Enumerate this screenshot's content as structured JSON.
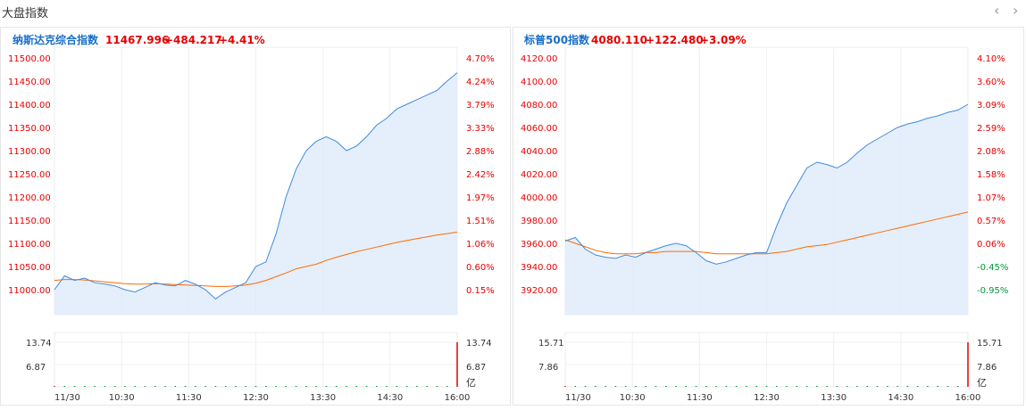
{
  "header": {
    "title": "大盘指数",
    "prev_icon": "chevron-left-icon",
    "next_icon": "chevron-right-icon"
  },
  "colors": {
    "up": "#e60000",
    "down": "#009933",
    "price_line": "#3d8be0",
    "avg_line": "#ff6a00",
    "area_fill": "#dce9fb",
    "name": "#1a6ec8"
  },
  "chart_data": [
    {
      "type": "line",
      "name": "纳斯达克综合指数",
      "price": "11467.996",
      "change": "+484.217",
      "change_pct": "+4.41%",
      "y_ticks": [
        "11500.00",
        "11450.00",
        "11400.00",
        "11350.00",
        "11300.00",
        "11250.00",
        "11200.00",
        "11150.00",
        "11100.00",
        "11050.00",
        "11000.00"
      ],
      "pct_ticks": [
        "4.70%",
        "4.24%",
        "3.79%",
        "3.33%",
        "2.88%",
        "2.42%",
        "1.97%",
        "1.51%",
        "1.06%",
        "0.60%",
        "0.15%"
      ],
      "ylim": [
        10967,
        11512
      ],
      "x_ticks": [
        "11/30",
        "10:30",
        "11:30",
        "12:30",
        "13:30",
        "14:30",
        "16:00"
      ],
      "x": [
        "09:30",
        "09:40",
        "09:50",
        "10:00",
        "10:10",
        "10:20",
        "10:30",
        "10:40",
        "10:50",
        "11:00",
        "11:10",
        "11:20",
        "11:30",
        "11:40",
        "11:50",
        "12:00",
        "12:10",
        "12:20",
        "12:30",
        "12:40",
        "12:50",
        "13:00",
        "13:10",
        "13:20",
        "13:30",
        "13:35",
        "13:40",
        "13:50",
        "14:00",
        "14:10",
        "14:20",
        "14:30",
        "14:40",
        "14:50",
        "15:00",
        "15:10",
        "15:20",
        "15:30",
        "15:40",
        "15:50",
        "16:00"
      ],
      "series": [
        {
          "values": [
            11000,
            11030,
            11020,
            11025,
            11015,
            11012,
            11008,
            11000,
            10995,
            11005,
            11015,
            11010,
            11008,
            11020,
            11012,
            11000,
            10980,
            10995,
            11005,
            11015,
            11050,
            11060,
            11120,
            11200,
            11260,
            11300,
            11320,
            11330,
            11320,
            11300,
            11310,
            11330,
            11355,
            11370,
            11390,
            11400,
            11410,
            11420,
            11430,
            11450,
            11468
          ]
        },
        {
          "values": [
            11020,
            11022,
            11022,
            11021,
            11019,
            11017,
            11015,
            11013,
            11012,
            11012,
            11013,
            11012,
            11011,
            11010,
            11009,
            11008,
            11007,
            11007,
            11008,
            11010,
            11014,
            11020,
            11028,
            11036,
            11045,
            11050,
            11055,
            11063,
            11070,
            11076,
            11082,
            11087,
            11092,
            11097,
            11102,
            11106,
            11110,
            11114,
            11118,
            11121,
            11124
          ]
        }
      ],
      "volume": {
        "ticks": [
          "13.74",
          "6.87"
        ],
        "unit": "亿",
        "max": 13.74,
        "values": [
          0.25,
          0.1,
          0.1,
          0.1,
          0.1,
          0.1,
          0.1,
          0.1,
          0.1,
          0.1,
          0.1,
          0.1,
          0.1,
          0.1,
          0.1,
          0.1,
          0.1,
          0.1,
          0.1,
          0.1,
          0.1,
          0.1,
          0.1,
          0.1,
          0.1,
          0.1,
          0.1,
          0.1,
          0.1,
          0.1,
          0.1,
          0.1,
          0.1,
          0.1,
          0.1,
          0.1,
          0.1,
          0.1,
          0.1,
          0.1,
          13.74
        ]
      }
    },
    {
      "type": "line",
      "name": "标普500指数",
      "price": "4080.110",
      "change": "+122.480",
      "change_pct": "+3.09%",
      "y_ticks": [
        "4120.00",
        "4100.00",
        "4080.00",
        "4060.00",
        "4040.00",
        "4020.00",
        "4000.00",
        "3980.00",
        "3960.00",
        "3940.00",
        "3920.00"
      ],
      "pct_ticks": [
        "4.10%",
        "3.60%",
        "3.09%",
        "2.59%",
        "2.08%",
        "1.58%",
        "1.07%",
        "0.57%",
        "0.06%",
        "-0.45%",
        "-0.95%"
      ],
      "ylim": [
        3907,
        4126
      ],
      "x_ticks": [
        "11/30",
        "10:30",
        "11:30",
        "12:30",
        "13:30",
        "14:30",
        "16:00"
      ],
      "x": [
        "09:30",
        "09:40",
        "09:50",
        "10:00",
        "10:10",
        "10:20",
        "10:30",
        "10:40",
        "10:50",
        "11:00",
        "11:10",
        "11:20",
        "11:30",
        "11:40",
        "11:50",
        "12:00",
        "12:10",
        "12:20",
        "12:30",
        "12:40",
        "12:50",
        "13:00",
        "13:10",
        "13:20",
        "13:30",
        "13:35",
        "13:40",
        "13:50",
        "14:00",
        "14:10",
        "14:20",
        "14:30",
        "14:40",
        "14:50",
        "15:00",
        "15:10",
        "15:20",
        "15:30",
        "15:40",
        "15:50",
        "16:00"
      ],
      "series": [
        {
          "values": [
            3962,
            3965,
            3955,
            3950,
            3948,
            3947,
            3950,
            3948,
            3952,
            3955,
            3958,
            3960,
            3958,
            3952,
            3945,
            3942,
            3944,
            3947,
            3950,
            3952,
            3952,
            3975,
            3995,
            4010,
            4025,
            4030,
            4028,
            4025,
            4030,
            4038,
            4045,
            4050,
            4055,
            4060,
            4063,
            4065,
            4068,
            4070,
            4073,
            4075,
            4080
          ]
        },
        {
          "values": [
            3963,
            3960,
            3957,
            3954,
            3952,
            3951,
            3951,
            3951,
            3952,
            3952,
            3953,
            3953,
            3953,
            3953,
            3952,
            3951,
            3951,
            3951,
            3951,
            3951,
            3951,
            3952,
            3953,
            3955,
            3957,
            3958,
            3959,
            3961,
            3963,
            3965,
            3967,
            3969,
            3971,
            3973,
            3975,
            3977,
            3979,
            3981,
            3983,
            3985,
            3987
          ]
        }
      ],
      "volume": {
        "ticks": [
          "15.71",
          "7.86"
        ],
        "unit": "亿",
        "max": 15.71,
        "values": [
          0.25,
          0.1,
          0.1,
          0.1,
          0.1,
          0.1,
          0.1,
          0.1,
          0.1,
          0.1,
          0.1,
          0.1,
          0.1,
          0.1,
          0.1,
          0.1,
          0.1,
          0.1,
          0.1,
          0.1,
          0.1,
          0.1,
          0.1,
          0.1,
          0.1,
          0.1,
          0.1,
          0.1,
          0.1,
          0.1,
          0.1,
          0.1,
          0.1,
          0.1,
          0.1,
          0.1,
          0.1,
          0.1,
          0.1,
          0.1,
          15.71
        ]
      }
    }
  ]
}
